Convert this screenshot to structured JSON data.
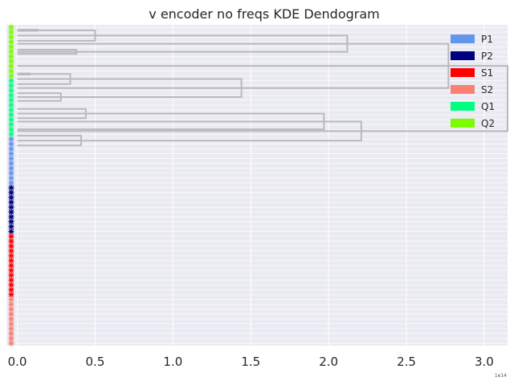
{
  "chart_data": {
    "type": "dendrogram",
    "title": "v encoder no freqs KDE Dendogram",
    "xlabel": "",
    "ylabel": "",
    "x_scale_label": "1e14",
    "xlim": [
      -0.07,
      3.15
    ],
    "xticks": [
      0.0,
      0.5,
      1.0,
      1.5,
      2.0,
      2.5,
      3.0
    ],
    "xtick_labels": [
      "0.0",
      "0.5",
      "1.0",
      "1.5",
      "2.0",
      "2.5",
      "3.0"
    ],
    "grid": true,
    "legend_position": "top-right",
    "legend": [
      {
        "label": "P1",
        "color": "#6495ED"
      },
      {
        "label": "P2",
        "color": "#000080"
      },
      {
        "label": "S1",
        "color": "#FF0000"
      },
      {
        "label": "S2",
        "color": "#FA8072"
      },
      {
        "label": "Q1",
        "color": "#00FF7F"
      },
      {
        "label": "Q2",
        "color": "#7CFC00"
      }
    ],
    "leaves": [
      {
        "group": "Q2",
        "count": 11
      },
      {
        "group": "Q1",
        "count": 12
      },
      {
        "group": "P1",
        "count": 10
      },
      {
        "group": "P2",
        "count": 10
      },
      {
        "group": "S1",
        "count": 13
      },
      {
        "group": "S2",
        "count": 10
      }
    ],
    "links": [
      {
        "height": 0.13,
        "y1": 0.52,
        "y2": 0.74
      },
      {
        "height": 0.5,
        "y1": 0.63,
        "y2": 2.78
      },
      {
        "height": 0.38,
        "y1": 4.62,
        "y2": 5.47
      },
      {
        "height": 2.12,
        "y1": 1.7,
        "y2": 5.04
      },
      {
        "height": 0.08,
        "y1": 9.5,
        "y2": 9.72
      },
      {
        "height": 0.34,
        "y1": 9.61,
        "y2": 11.68
      },
      {
        "height": 0.28,
        "y1": 13.57,
        "y2": 15.14
      },
      {
        "height": 1.44,
        "y1": 10.64,
        "y2": 14.35
      },
      {
        "height": 2.77,
        "y1": 3.37,
        "y2": 12.5
      },
      {
        "height": 0.44,
        "y1": 16.8,
        "y2": 18.7
      },
      {
        "height": 1.97,
        "y1": 17.75,
        "y2": 21.0
      },
      {
        "height": 0.41,
        "y1": 22.3,
        "y2": 24.3
      },
      {
        "height": 2.21,
        "y1": 19.38,
        "y2": 23.3
      },
      {
        "height": 3.15,
        "y1": 7.94,
        "y2": 21.34
      }
    ]
  }
}
